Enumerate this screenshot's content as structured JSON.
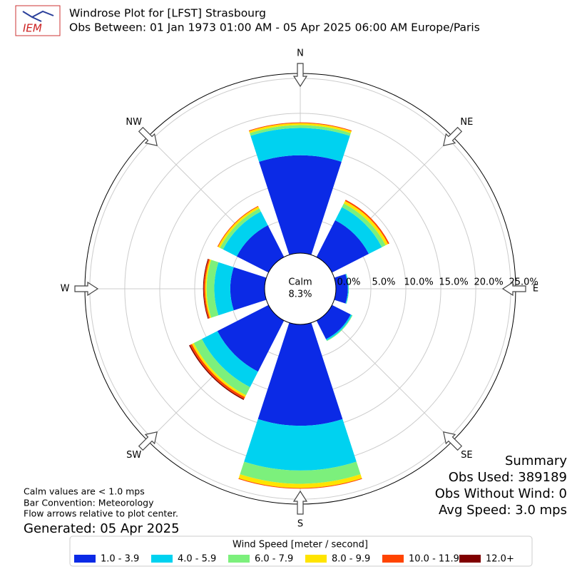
{
  "logo": "IEM",
  "chart_data": {
    "type": "windrose",
    "title": "Windrose Plot for [LFST] Strasbourg",
    "subtitle": "Obs Between: 01 Jan 1973 01:00 AM - 05 Apr 2025 06:00 AM Europe/Paris",
    "directions": [
      "N",
      "NE",
      "E",
      "SE",
      "S",
      "SW",
      "W",
      "NW"
    ],
    "series": [
      {
        "name": "1.0 - 3.9",
        "color": "#0b2ae6",
        "values": [
          14.0,
          5.9,
          1.7,
          3.0,
          14.5,
          8.2,
          4.9,
          5.1
        ]
      },
      {
        "name": "4.0 - 5.9",
        "color": "#00d2f0",
        "values": [
          3.9,
          2.1,
          0.1,
          0.2,
          6.4,
          2.5,
          2.3,
          2.2
        ]
      },
      {
        "name": "6.0 - 7.9",
        "color": "#7cf07c",
        "values": [
          0.4,
          0.6,
          0.05,
          0.1,
          1.9,
          1.3,
          1.1,
          0.5
        ]
      },
      {
        "name": "8.0 - 9.9",
        "color": "#ffe400",
        "values": [
          0.3,
          0.4,
          0,
          0,
          0.6,
          0.3,
          0.2,
          0.3
        ]
      },
      {
        "name": "10.0 - 11.9",
        "color": "#ff4400",
        "values": [
          0.1,
          0.2,
          0,
          0,
          0.1,
          0.3,
          0.2,
          0.1
        ]
      },
      {
        "name": "12.0+",
        "color": "#800000",
        "values": [
          0,
          0,
          0,
          0,
          0,
          0.15,
          0.1,
          0
        ]
      }
    ],
    "rlim": [
      0,
      25.7
    ],
    "rticks": [
      {
        "value": 0,
        "label": "0.0%"
      },
      {
        "value": 5,
        "label": "5.0%"
      },
      {
        "value": 10,
        "label": "10.0%"
      },
      {
        "value": 15,
        "label": "15.0%"
      },
      {
        "value": 20,
        "label": "20.0%"
      },
      {
        "value": 25,
        "label": "25.0%"
      }
    ],
    "calm": {
      "label": "Calm",
      "value": 8.3,
      "value_label": "8.3%"
    },
    "legend_title": "Wind Speed [meter / second]"
  },
  "summary": {
    "title": "Summary",
    "lines": [
      "Obs Used: 389189",
      "Obs Without Wind: 0",
      "Avg Speed: 3.0 mps"
    ]
  },
  "notes": [
    "Calm values are < 1.0 mps",
    "Bar Convention: Meteorology",
    "Flow arrows relative to plot center."
  ],
  "generated": "Generated: 05 Apr 2025"
}
